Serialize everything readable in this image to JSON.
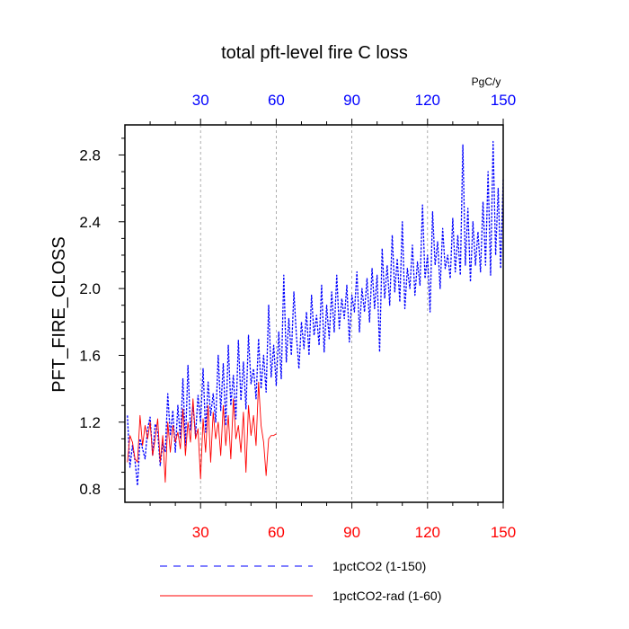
{
  "chart_data": {
    "type": "line",
    "title": "total pft-level fire C loss",
    "ylabel": "PFT_FIRE_CLOSS",
    "xlabel": "",
    "top_axis_unit": "PgC/y",
    "xlim": [
      0,
      150
    ],
    "ylim": [
      0.72,
      2.98
    ],
    "x_ticks": [
      30,
      60,
      90,
      120,
      150
    ],
    "y_ticks": [
      0.8,
      1.2,
      1.6,
      2.0,
      2.4,
      2.8
    ],
    "y_tick_labels": [
      "0.8",
      "1.2",
      "1.6",
      "2.0",
      "2.4",
      "2.8"
    ],
    "grid": "vertical dashed at x ticks",
    "legend_position": "bottom",
    "colors": {
      "top_axis": "#0000ff",
      "bottom_axis": "#ff0000"
    },
    "series": [
      {
        "name": "1pctCO2 (1-150)",
        "color": "#0000ff",
        "style": "dashed",
        "x_start": 1,
        "values": [
          1.24,
          0.93,
          1.06,
          0.97,
          0.82,
          1.1,
          1.04,
          0.98,
          1.16,
          1.23,
          1.0,
          1.19,
          1.14,
          0.94,
          1.08,
          1.02,
          1.37,
          1.12,
          1.27,
          1.02,
          1.3,
          1.1,
          1.46,
          1.06,
          1.54,
          1.15,
          1.3,
          1.12,
          1.36,
          1.2,
          1.52,
          1.14,
          1.44,
          1.24,
          1.37,
          1.2,
          1.6,
          1.27,
          1.55,
          1.18,
          1.66,
          1.3,
          1.48,
          1.22,
          1.69,
          1.33,
          1.56,
          1.28,
          1.72,
          1.43,
          1.52,
          1.34,
          1.7,
          1.4,
          1.6,
          1.38,
          1.9,
          1.47,
          1.66,
          1.42,
          1.74,
          1.46,
          2.08,
          1.56,
          1.82,
          1.6,
          1.98,
          1.72,
          1.52,
          1.8,
          1.64,
          1.86,
          1.6,
          1.96,
          1.72,
          1.84,
          1.66,
          2.02,
          1.62,
          1.9,
          1.7,
          1.98,
          1.74,
          2.08,
          1.76,
          1.94,
          1.82,
          2.02,
          1.68,
          1.96,
          1.86,
          2.1,
          1.74,
          2.0,
          1.86,
          2.06,
          1.8,
          2.12,
          1.88,
          2.08,
          1.62,
          2.24,
          1.94,
          2.14,
          1.9,
          2.32,
          1.98,
          2.18,
          1.92,
          2.4,
          1.88,
          2.12,
          2.0,
          2.26,
          1.96,
          2.16,
          2.02,
          2.5,
          2.06,
          2.2,
          1.86,
          2.46,
          2.14,
          2.28,
          2.0,
          2.36,
          2.12,
          2.2,
          2.06,
          2.42,
          2.1,
          2.32,
          2.08,
          2.86,
          2.14,
          2.48,
          2.04,
          2.4,
          2.14,
          2.34,
          2.1,
          2.52,
          2.14,
          2.7,
          2.08,
          2.88,
          2.2,
          2.6,
          2.12,
          2.66
        ]
      },
      {
        "name": "1pctCO2-rad (1-60)",
        "color": "#ff0000",
        "style": "solid",
        "x_start": 1,
        "values": [
          0.96,
          1.12,
          1.08,
          0.98,
          0.96,
          1.24,
          1.06,
          1.18,
          1.1,
          1.2,
          1.0,
          1.1,
          1.22,
          0.96,
          1.12,
          0.84,
          1.2,
          1.02,
          1.18,
          1.08,
          1.14,
          1.04,
          1.28,
          1.0,
          1.2,
          1.08,
          1.34,
          1.1,
          1.16,
          0.86,
          1.22,
          1.02,
          1.3,
          0.96,
          1.26,
          1.1,
          1.2,
          1.0,
          1.3,
          1.06,
          1.24,
          0.98,
          1.34,
          1.1,
          1.18,
          1.02,
          1.26,
          0.9,
          1.3,
          1.12,
          1.24,
          1.06,
          1.44,
          1.18,
          1.08,
          0.88,
          1.1,
          1.12,
          1.12,
          1.13
        ]
      }
    ]
  }
}
